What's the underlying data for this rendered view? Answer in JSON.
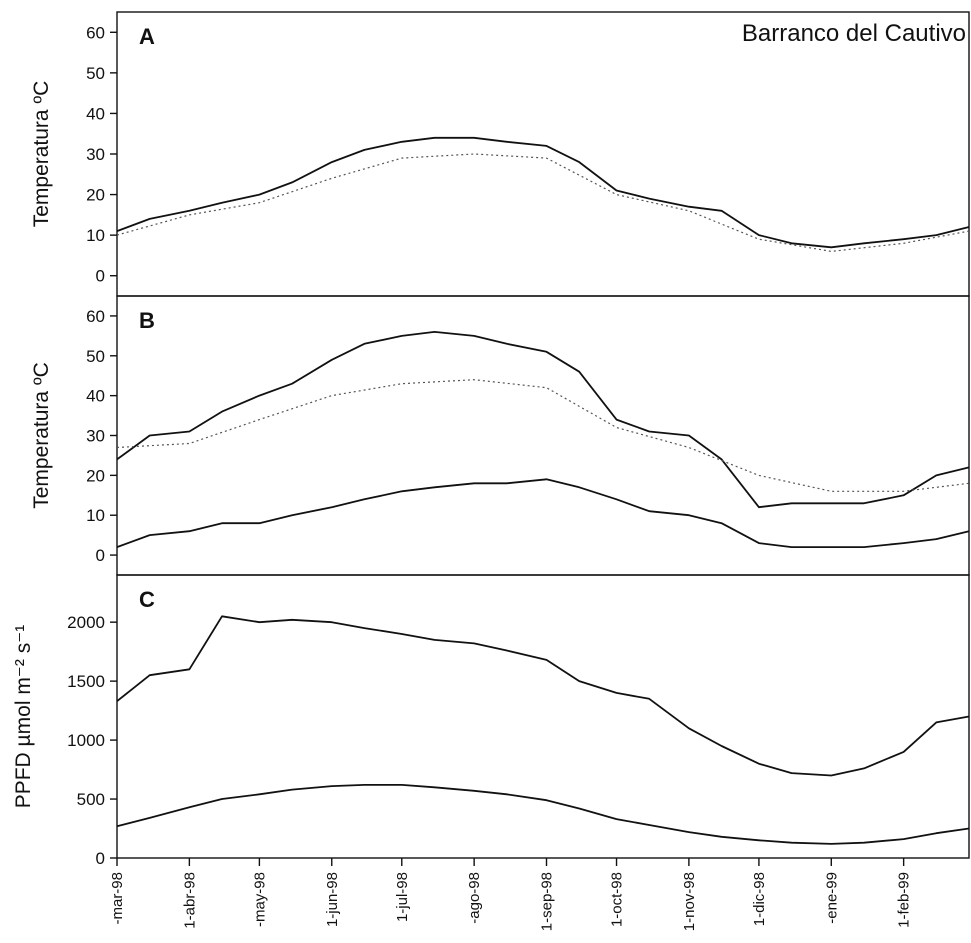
{
  "chart_data": {
    "type": "line",
    "site": "Barranco del Cautivo",
    "x_tick_labels": [
      "-mar-98",
      "1-abr-98",
      "-may-98",
      "1-jun-98",
      "1-jul-98",
      "-ago-98",
      "1-sep-98",
      "1-oct-98",
      "1-nov-98",
      "1-dic-98",
      "-ene-99",
      "1-feb-99"
    ],
    "x_tick_dates": [
      "1998-03-01",
      "1998-04-01",
      "1998-05-01",
      "1998-06-01",
      "1998-07-01",
      "1998-08-01",
      "1998-09-01",
      "1998-10-01",
      "1998-11-01",
      "1998-12-01",
      "1999-01-01",
      "1999-02-01"
    ],
    "xlim": [
      "1998-03-01",
      "1999-03-01"
    ],
    "panels": [
      {
        "label": "A",
        "ylabel": "Temperatura ºC",
        "ylim": [
          -5,
          65
        ],
        "yticks": [
          0,
          10,
          20,
          30,
          40,
          50,
          60
        ],
        "series": [
          {
            "style": "solid",
            "x": [
              "1998-03-01",
              "1998-03-15",
              "1998-04-01",
              "1998-04-15",
              "1998-05-01",
              "1998-05-15",
              "1998-06-01",
              "1998-06-15",
              "1998-07-01",
              "1998-07-15",
              "1998-08-01",
              "1998-08-15",
              "1998-09-01",
              "1998-09-15",
              "1998-10-01",
              "1998-10-15",
              "1998-11-01",
              "1998-11-15",
              "1998-12-01",
              "1998-12-15",
              "1999-01-01",
              "1999-01-15",
              "1999-02-01",
              "1999-02-15",
              "1999-03-01"
            ],
            "y": [
              11,
              14,
              16,
              18,
              20,
              23,
              28,
              31,
              33,
              34,
              34,
              33,
              32,
              28,
              21,
              19,
              17,
              16,
              10,
              8,
              7,
              8,
              9,
              10,
              12
            ]
          },
          {
            "style": "dotted",
            "x": [
              "1998-03-01",
              "1998-04-01",
              "1998-05-01",
              "1998-06-01",
              "1998-07-01",
              "1998-08-01",
              "1998-09-01",
              "1998-10-01",
              "1998-11-01",
              "1998-12-01",
              "1999-01-01",
              "1999-02-01",
              "1999-03-01"
            ],
            "y": [
              10,
              15,
              18,
              24,
              29,
              30,
              29,
              20,
              16,
              9,
              6,
              8,
              11
            ]
          }
        ]
      },
      {
        "label": "B",
        "ylabel": "Temperatura ºC",
        "ylim": [
          -5,
          65
        ],
        "yticks": [
          0,
          10,
          20,
          30,
          40,
          50,
          60
        ],
        "series": [
          {
            "style": "solid",
            "x": [
              "1998-03-01",
              "1998-03-15",
              "1998-04-01",
              "1998-04-15",
              "1998-05-01",
              "1998-05-15",
              "1998-06-01",
              "1998-06-15",
              "1998-07-01",
              "1998-07-15",
              "1998-08-01",
              "1998-08-15",
              "1998-09-01",
              "1998-09-15",
              "1998-10-01",
              "1998-10-15",
              "1998-11-01",
              "1998-11-15",
              "1998-12-01",
              "1998-12-15",
              "1999-01-01",
              "1999-01-15",
              "1999-02-01",
              "1999-02-15",
              "1999-03-01"
            ],
            "y": [
              24,
              30,
              31,
              36,
              40,
              43,
              49,
              53,
              55,
              56,
              55,
              53,
              51,
              46,
              34,
              31,
              30,
              24,
              12,
              13,
              13,
              13,
              15,
              20,
              22
            ]
          },
          {
            "style": "dotted",
            "x": [
              "1998-03-01",
              "1998-04-01",
              "1998-05-01",
              "1998-06-01",
              "1998-07-01",
              "1998-08-01",
              "1998-09-01",
              "1998-10-01",
              "1998-11-01",
              "1998-12-01",
              "1999-01-01",
              "1999-02-01",
              "1999-03-01"
            ],
            "y": [
              27,
              28,
              34,
              40,
              43,
              44,
              42,
              32,
              27,
              20,
              16,
              16,
              18
            ]
          },
          {
            "style": "solid",
            "x": [
              "1998-03-01",
              "1998-03-15",
              "1998-04-01",
              "1998-04-15",
              "1998-05-01",
              "1998-05-15",
              "1998-06-01",
              "1998-06-15",
              "1998-07-01",
              "1998-07-15",
              "1998-08-01",
              "1998-08-15",
              "1998-09-01",
              "1998-09-15",
              "1998-10-01",
              "1998-10-15",
              "1998-11-01",
              "1998-11-15",
              "1998-12-01",
              "1998-12-15",
              "1999-01-01",
              "1999-01-15",
              "1999-02-01",
              "1999-02-15",
              "1999-03-01"
            ],
            "y": [
              2,
              5,
              6,
              8,
              8,
              10,
              12,
              14,
              16,
              17,
              18,
              18,
              19,
              17,
              14,
              11,
              10,
              8,
              3,
              2,
              2,
              2,
              3,
              4,
              6
            ]
          }
        ]
      },
      {
        "label": "C",
        "ylabel": "PPFD µmol m⁻² s⁻¹",
        "ylim": [
          0,
          2400
        ],
        "yticks": [
          0,
          500,
          1000,
          1500,
          2000
        ],
        "series": [
          {
            "style": "solid",
            "x": [
              "1998-03-01",
              "1998-03-15",
              "1998-04-01",
              "1998-04-15",
              "1998-05-01",
              "1998-05-15",
              "1998-06-01",
              "1998-06-15",
              "1998-07-01",
              "1998-07-15",
              "1998-08-01",
              "1998-08-15",
              "1998-09-01",
              "1998-09-15",
              "1998-10-01",
              "1998-10-15",
              "1998-11-01",
              "1998-11-15",
              "1998-12-01",
              "1998-12-15",
              "1999-01-01",
              "1999-01-15",
              "1999-02-01",
              "1999-02-15",
              "1999-03-01"
            ],
            "y": [
              1330,
              1550,
              1600,
              2050,
              2000,
              2020,
              2000,
              1950,
              1900,
              1850,
              1820,
              1760,
              1680,
              1500,
              1400,
              1350,
              1100,
              950,
              800,
              720,
              700,
              760,
              900,
              1150,
              1200
            ]
          },
          {
            "style": "solid",
            "x": [
              "1998-03-01",
              "1998-03-15",
              "1998-04-01",
              "1998-04-15",
              "1998-05-01",
              "1998-05-15",
              "1998-06-01",
              "1998-06-15",
              "1998-07-01",
              "1998-07-15",
              "1998-08-01",
              "1998-08-15",
              "1998-09-01",
              "1998-09-15",
              "1998-10-01",
              "1998-10-15",
              "1998-11-01",
              "1998-11-15",
              "1998-12-01",
              "1998-12-15",
              "1999-01-01",
              "1999-01-15",
              "1999-02-01",
              "1999-02-15",
              "1999-03-01"
            ],
            "y": [
              270,
              340,
              430,
              500,
              540,
              580,
              610,
              620,
              620,
              600,
              570,
              540,
              490,
              420,
              330,
              280,
              220,
              180,
              150,
              130,
              120,
              130,
              160,
              210,
              250
            ]
          }
        ]
      }
    ]
  }
}
